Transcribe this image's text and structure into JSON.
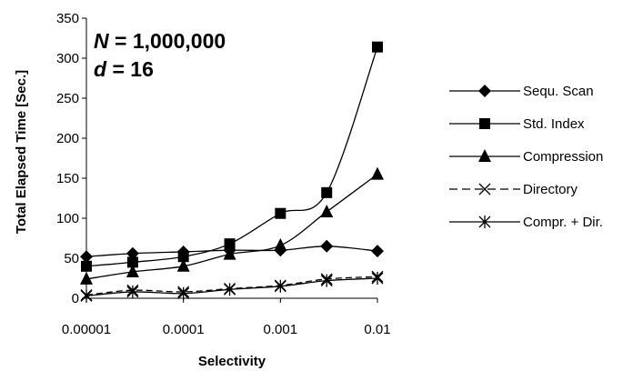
{
  "chart_data": {
    "type": "line",
    "x_scale": "log",
    "xlabel": "Selectivity",
    "ylabel": "Total Elapsed Time [Sec.]",
    "x_ticks": [
      "0.00001",
      "0.0001",
      "0.001",
      "0.01"
    ],
    "y_ticks": [
      "0",
      "50",
      "100",
      "150",
      "200",
      "250",
      "300",
      "350"
    ],
    "xlim": [
      1e-05,
      0.01
    ],
    "ylim": [
      0,
      350
    ],
    "grid": false,
    "legend_position": "right",
    "annotations": [
      {
        "var": "N",
        "text": " = 1,000,000"
      },
      {
        "var": "d",
        "text": " = 16"
      }
    ],
    "x": [
      1e-05,
      3e-05,
      0.0001,
      0.0003,
      0.001,
      0.003,
      0.01
    ],
    "series": [
      {
        "name": "Sequ. Scan",
        "marker": "diamond",
        "dash": "solid",
        "values": [
          52,
          56,
          58,
          60,
          60,
          65,
          59
        ]
      },
      {
        "name": "Std. Index",
        "marker": "square",
        "dash": "solid",
        "values": [
          40,
          45,
          52,
          68,
          106,
          132,
          314
        ]
      },
      {
        "name": "Compression",
        "marker": "triangle",
        "dash": "solid",
        "values": [
          24,
          33,
          40,
          55,
          66,
          108,
          155
        ]
      },
      {
        "name": "Directory",
        "marker": "x",
        "dash": "dashed",
        "values": [
          4,
          10,
          8,
          12,
          16,
          24,
          27
        ]
      },
      {
        "name": "Compr. + Dir.",
        "marker": "star",
        "dash": "solid",
        "values": [
          3,
          8,
          6,
          11,
          15,
          22,
          25
        ]
      }
    ]
  }
}
